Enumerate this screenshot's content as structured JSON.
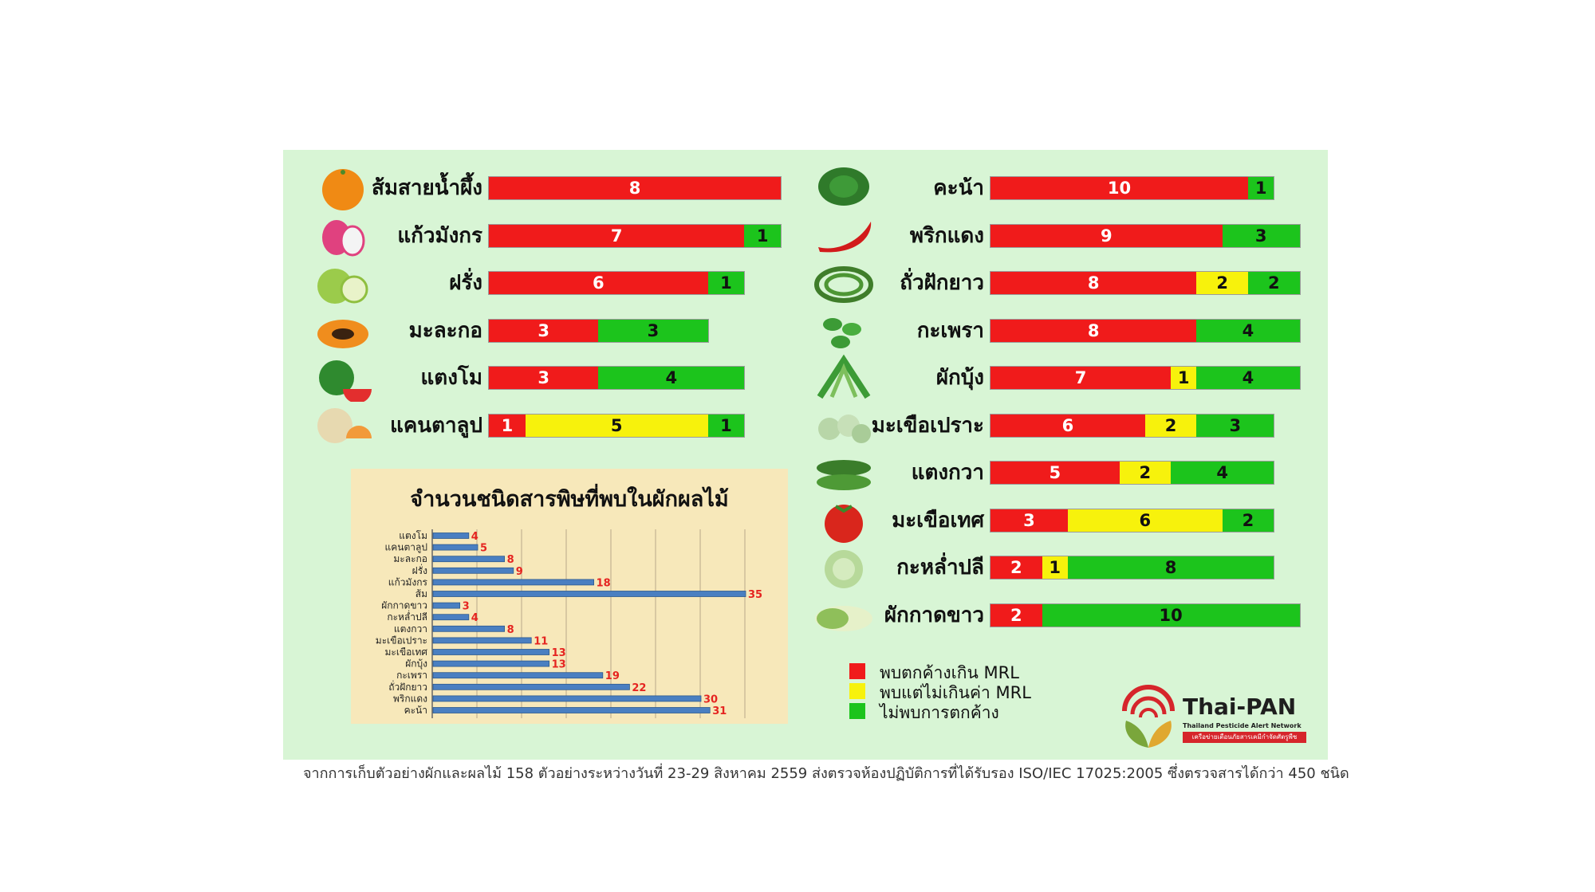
{
  "colors": {
    "panel_bg": "#d8f5d5",
    "exceed_mrl": "#f01b1b",
    "within_mrl": "#f7f20c",
    "not_found": "#1cc41c",
    "inset_bg": "#f7e8ba",
    "inset_bar": "#4a7fc1",
    "inset_value": "#e52420"
  },
  "legend": [
    {
      "label": "พบตกค้างเกิน MRL",
      "color": "#f01b1b"
    },
    {
      "label": "พบแต่ไม่เกินค่า MRL",
      "color": "#f7f20c"
    },
    {
      "label": "ไม่พบการตกค้าง",
      "color": "#1cc41c"
    }
  ],
  "logo": {
    "name": "Thai-PAN",
    "subtitle": "Thailand Pesticide Alert Network",
    "thai_tagline": "เครือข่ายเตือนภัยสารเคมีกำจัดศัตรูพืช"
  },
  "footnote": "จากการเก็บตัวอย่างผักและผลไม้ 158 ตัวอย่างระหว่างวันที่ 23-29 สิงหาคม 2559 ส่งตรวจห้องปฏิบัติการที่ได้รับรอง ISO/IEC 17025:2005 ซึ่งตรวจสารได้กว่า 450 ชนิด",
  "chart_data": [
    {
      "type": "bar",
      "stacked": true,
      "orientation": "horizontal",
      "categories": [
        "ส้มสายน้ำผึ้ง",
        "แก้วมังกร",
        "ฝรั่ง",
        "มะละกอ",
        "แตงโม",
        "แคนตาลูป"
      ],
      "icons": [
        "orange-icon",
        "dragon-fruit-icon",
        "guava-icon",
        "papaya-icon",
        "watermelon-icon",
        "cantaloupe-icon"
      ],
      "series": [
        {
          "color": "#f01b1b",
          "values": [
            8,
            7,
            6,
            3,
            3,
            1
          ]
        },
        {
          "color": "#f7f20c",
          "values": [
            0,
            0,
            0,
            0,
            0,
            5
          ]
        },
        {
          "color": "#1cc41c",
          "values": [
            0,
            1,
            1,
            3,
            4,
            1
          ]
        }
      ]
    },
    {
      "type": "bar",
      "stacked": true,
      "orientation": "horizontal",
      "categories": [
        "คะน้า",
        "พริกแดง",
        "ถั่วฝักยาว",
        "กะเพรา",
        "ผักบุ้ง",
        "มะเขือเปราะ",
        "แตงกวา",
        "มะเขือเทศ",
        "กะหล่ำปลี",
        "ผักกาดขาว"
      ],
      "icons": [
        "kale-icon",
        "chili-icon",
        "long-bean-icon",
        "basil-icon",
        "morning-glory-icon",
        "thai-eggplant-icon",
        "cucumber-icon",
        "tomato-icon",
        "cabbage-icon",
        "chinese-cabbage-icon"
      ],
      "series": [
        {
          "color": "#f01b1b",
          "values": [
            10,
            9,
            8,
            8,
            7,
            6,
            5,
            3,
            2,
            2
          ]
        },
        {
          "color": "#f7f20c",
          "values": [
            0,
            0,
            2,
            0,
            1,
            2,
            2,
            6,
            1,
            0
          ]
        },
        {
          "color": "#1cc41c",
          "values": [
            1,
            3,
            2,
            4,
            4,
            3,
            4,
            2,
            8,
            10
          ]
        }
      ]
    },
    {
      "type": "bar",
      "orientation": "horizontal",
      "title": "จำนวนชนิดสารพิษที่พบในผักผลไม้",
      "categories": [
        "แตงโม",
        "แคนตาลูป",
        "มะละกอ",
        "ฝรั่ง",
        "แก้วมังกร",
        "ส้ม",
        "ผักกาดขาว",
        "กะหล่ำปลี",
        "แตงกวา",
        "มะเขือเปราะ",
        "มะเขือเทศ",
        "ผักบุ้ง",
        "กะเพรา",
        "ถั่วฝักยาว",
        "พริกแดง",
        "คะน้า"
      ],
      "values": [
        4,
        5,
        8,
        9,
        18,
        35,
        3,
        4,
        8,
        11,
        13,
        13,
        19,
        22,
        30,
        31
      ],
      "xlim": [
        0,
        35
      ],
      "grid": true
    }
  ]
}
